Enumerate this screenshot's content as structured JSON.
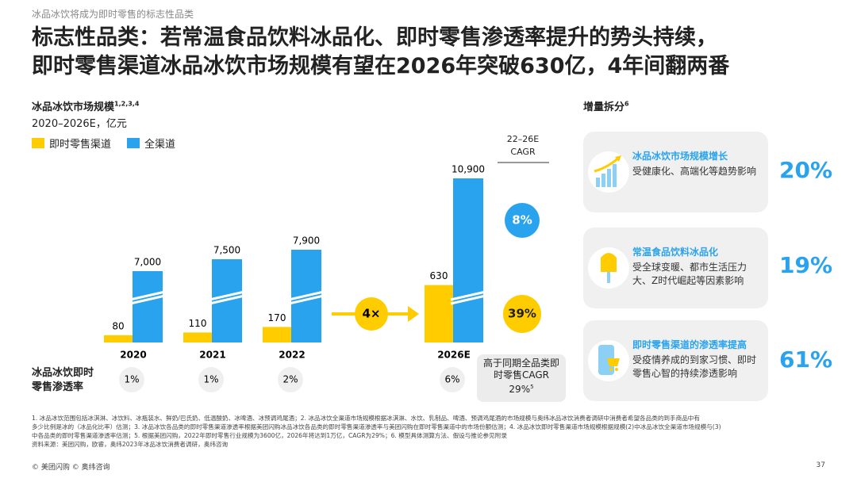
{
  "header": {
    "kicker": "冰品冰饮将成为即时零售的标志性品类",
    "title_lines": [
      "标志性品类：若常温食品饮料冰品化、即时零售渗透率提升的势头持续，",
      "即时零售渠道冰品冰饮市场规模有望在2026年突破630亿，4年间翻两番"
    ]
  },
  "chart_data": {
    "type": "bar",
    "title": "冰品冰饮市场规模",
    "title_sup": "1,2,3,4",
    "subtitle": "2020–2026E，亿元",
    "categories": [
      "2020",
      "2021",
      "2022",
      "2026E"
    ],
    "series": [
      {
        "name": "即时零售渠道",
        "color": "#ffcc00",
        "values": [
          80,
          110,
          170,
          630
        ],
        "cagr": 39,
        "cagr_label": "39%"
      },
      {
        "name": "全渠道",
        "color": "#2aa3ee",
        "values": [
          7000,
          7500,
          7900,
          10900
        ],
        "value_labels": [
          "7,000",
          "7,500",
          "7,900",
          "10,900"
        ],
        "cagr": 8,
        "cagr_label": "8%"
      }
    ],
    "cagr_title_lines": [
      "22–26E",
      "CAGR"
    ],
    "multiplier": "4×",
    "penetration": {
      "label": "冰品冰饮即时零售渗透率",
      "values": [
        1,
        1,
        2,
        6
      ],
      "value_labels": [
        "1%",
        "1%",
        "2%",
        "6%"
      ]
    },
    "note": {
      "text": "高于同期全品类即时零售CAGR 29%",
      "sup": "5"
    }
  },
  "breakdown": {
    "title": "增量拆分",
    "title_sup": "6",
    "items": [
      {
        "title": "冰品冰饮市场规模增长",
        "desc": "受健康化、高端化等趋势影响",
        "value": "20%"
      },
      {
        "title": "常温食品饮料冰品化",
        "desc": "受全球变暖、都市生活压力大、Z时代崛起等因素影响",
        "value": "19%"
      },
      {
        "title": "即时零售渠道的渗透率提高",
        "desc": "受疫情养成的到家习惯、即时零售心智的持续渗透影响",
        "value": "61%"
      }
    ]
  },
  "footnotes": [
    "1. 冰品冰饮范围包括冰淇淋、冰饮料、冰瓶装水、鲜奶/巴氏奶、低温酸奶、冰啤酒、冰预调鸡尾酒；2. 冰品冰饮全渠道市场规模根据冰淇淋、水饮、乳制品、啤酒、预调鸡尾酒的市场规模与奥纬冰品冰饮消费者调研中消费者希望各品类的到手商品中有",
    "多少比例是冰的（冰品化比率）估测；3. 冰品冰饮各品类的即时零售渠道渗透率根据美团闪购冰品冰饮各品类的即时零售渠道渗透率与美团闪购在即时零售渠道中的市场份额估测；4. 冰品冰饮即时零售渠道市场规模根据规模(2)中冰品冰饮全渠道市场规模与(3)",
    "中各品类的即时零售渠道渗透率估测；5. 根据美团闪购，2022年即时零售行业规模为3600亿，2026年将达到1万亿，CAGR为29%；6. 模型具体测算方法、假设与推论参见附录",
    "资料来源：美团闪购，欧睿，奥纬2023年冰品冰饮消费者调研，奥纬咨询"
  ],
  "footer": {
    "copyright": "© 美团闪购 © 奥纬咨询",
    "page": "37"
  }
}
